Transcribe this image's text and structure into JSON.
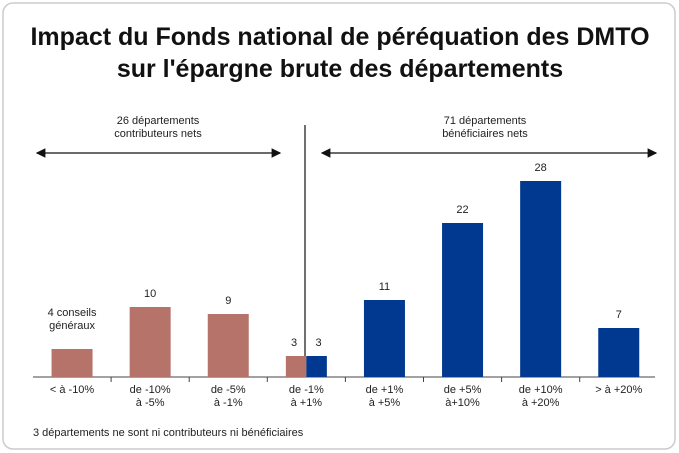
{
  "chart_data": {
    "type": "bar",
    "title": "Impact du Fonds national de péréquation des DMTO\nsur l'épargne brute des départements",
    "categories": [
      "< à -10%",
      "de -10%\nà -5%",
      "de -5%\nà -1%",
      "de -1%\nà +1%",
      "de +1%\nà +5%",
      "de +5%\nà+10%",
      "de +10%\nà +20%",
      "> à +20%"
    ],
    "series": [
      {
        "color": "#b5736a",
        "values": [
          4,
          10,
          9,
          3,
          null,
          null,
          null,
          null
        ],
        "value_labels": [
          "4 conseils\ngénéraux",
          null,
          null,
          null,
          null,
          null,
          null,
          null
        ]
      },
      {
        "color": "#00398f",
        "values": [
          null,
          null,
          null,
          3,
          11,
          22,
          28,
          7
        ]
      }
    ],
    "annotations": [
      "26 départements\ncontributeurs nets",
      "71 départements\nbénéficiaires nets"
    ],
    "footnote": "3 départements ne sont ni contributeurs ni bénéficiaires"
  }
}
